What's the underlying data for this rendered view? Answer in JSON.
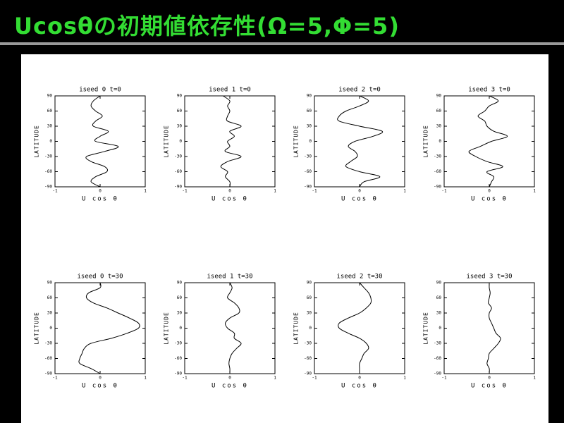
{
  "slide_title": "Ucosθの初期値依存性(Ω=5,Φ=5)",
  "chart_data": [
    {
      "type": "line",
      "title": "iseed 0   t=0",
      "xlabel": "U cos θ",
      "ylabel": "LATITUDE",
      "xlim": [
        -1,
        1
      ],
      "xticks": [
        -1,
        0,
        1
      ],
      "ylim": [
        -90,
        90
      ],
      "yticks": [
        -90,
        -60,
        -30,
        0,
        30,
        60,
        90
      ],
      "color": "#000000",
      "y": [
        90,
        80,
        70,
        60,
        50,
        40,
        30,
        20,
        10,
        0,
        -10,
        -20,
        -30,
        -40,
        -50,
        -60,
        -70,
        -80,
        -90
      ],
      "values": [
        0,
        -0.15,
        -0.2,
        -0.1,
        0.05,
        -0.1,
        -0.15,
        0.18,
        0.0,
        -0.1,
        0.4,
        0.1,
        -0.3,
        -0.2,
        0.1,
        0.15,
        -0.1,
        -0.2,
        0
      ]
    },
    {
      "type": "line",
      "title": "iseed 1   t=0",
      "xlabel": "U cos θ",
      "ylabel": "LATITUDE",
      "xlim": [
        -1,
        1
      ],
      "xticks": [
        -1,
        0,
        1
      ],
      "ylim": [
        -90,
        90
      ],
      "yticks": [
        -90,
        -60,
        -30,
        0,
        30,
        60,
        90
      ],
      "color": "#000000",
      "y": [
        90,
        80,
        70,
        60,
        50,
        40,
        30,
        20,
        10,
        0,
        -10,
        -20,
        -30,
        -40,
        -50,
        -60,
        -70,
        -80,
        -90
      ],
      "values": [
        -0.15,
        0.0,
        -0.05,
        0.0,
        -0.05,
        -0.05,
        0.25,
        0.0,
        0.1,
        -0.05,
        0.0,
        -0.1,
        0.25,
        -0.05,
        -0.2,
        -0.05,
        -0.1,
        0.0,
        0
      ]
    },
    {
      "type": "line",
      "title": "iseed 2   t=0",
      "xlabel": "U cos θ",
      "ylabel": "LATITUDE",
      "xlim": [
        -1,
        1
      ],
      "xticks": [
        -1,
        0,
        1
      ],
      "ylim": [
        -90,
        90
      ],
      "yticks": [
        -90,
        -60,
        -30,
        0,
        30,
        60,
        90
      ],
      "color": "#000000",
      "y": [
        90,
        80,
        70,
        60,
        50,
        40,
        30,
        20,
        10,
        0,
        -10,
        -20,
        -30,
        -40,
        -50,
        -60,
        -70,
        -80,
        -90
      ],
      "values": [
        0,
        0.2,
        0.0,
        -0.3,
        -0.45,
        -0.45,
        0.0,
        0.5,
        0.3,
        -0.1,
        -0.25,
        -0.1,
        -0.05,
        -0.2,
        -0.3,
        0.0,
        0.45,
        0.1,
        0
      ]
    },
    {
      "type": "line",
      "title": "iseed 3   t=0",
      "xlabel": "U cos θ",
      "ylabel": "LATITUDE",
      "xlim": [
        -1,
        1
      ],
      "xticks": [
        -1,
        0,
        1
      ],
      "ylim": [
        -90,
        90
      ],
      "yticks": [
        -90,
        -60,
        -30,
        0,
        30,
        60,
        90
      ],
      "color": "#000000",
      "y": [
        90,
        80,
        70,
        60,
        50,
        40,
        30,
        20,
        10,
        0,
        -10,
        -20,
        -30,
        -40,
        -50,
        -60,
        -70,
        -80,
        -90
      ],
      "values": [
        0,
        0.2,
        0.0,
        -0.1,
        -0.25,
        -0.1,
        -0.05,
        0.1,
        0.4,
        0.05,
        -0.2,
        -0.45,
        -0.3,
        -0.05,
        0.3,
        -0.05,
        0.1,
        0.05,
        0
      ]
    },
    {
      "type": "line",
      "title": "iseed 0   t=30",
      "xlabel": "U cos θ",
      "ylabel": "LATITUDE",
      "xlim": [
        -1,
        1
      ],
      "xticks": [
        -1,
        0,
        1
      ],
      "ylim": [
        -90,
        90
      ],
      "yticks": [
        -90,
        -60,
        -30,
        0,
        30,
        60,
        90
      ],
      "color": "#000000",
      "y": [
        90,
        80,
        70,
        60,
        50,
        40,
        30,
        20,
        10,
        0,
        -10,
        -20,
        -30,
        -40,
        -50,
        -60,
        -70,
        -80,
        -90
      ],
      "values": [
        0,
        0.0,
        -0.25,
        -0.3,
        -0.15,
        0.15,
        0.4,
        0.65,
        0.85,
        0.85,
        0.6,
        0.25,
        -0.2,
        -0.35,
        -0.4,
        -0.45,
        -0.45,
        -0.2,
        0
      ]
    },
    {
      "type": "line",
      "title": "iseed 1   t=30",
      "xlabel": "U cos θ",
      "ylabel": "LATITUDE",
      "xlim": [
        -1,
        1
      ],
      "xticks": [
        -1,
        0,
        1
      ],
      "ylim": [
        -90,
        90
      ],
      "yticks": [
        -90,
        -60,
        -30,
        0,
        30,
        60,
        90
      ],
      "color": "#000000",
      "y": [
        90,
        80,
        70,
        60,
        50,
        40,
        30,
        20,
        10,
        0,
        -10,
        -20,
        -30,
        -40,
        -50,
        -60,
        -70,
        -80,
        -90
      ],
      "values": [
        0,
        0.05,
        0.0,
        -0.05,
        0.1,
        0.2,
        0.2,
        0.0,
        -0.1,
        -0.05,
        0.1,
        0.1,
        0.25,
        0.15,
        0.05,
        0.0,
        -0.02,
        0.0,
        0
      ]
    },
    {
      "type": "line",
      "title": "iseed 2   t=30",
      "xlabel": "U cos θ",
      "ylabel": "LATITUDE",
      "xlim": [
        -1,
        1
      ],
      "xticks": [
        -1,
        0,
        1
      ],
      "ylim": [
        -90,
        90
      ],
      "yticks": [
        -90,
        -60,
        -30,
        0,
        30,
        60,
        90
      ],
      "color": "#000000",
      "y": [
        90,
        80,
        70,
        60,
        50,
        40,
        30,
        20,
        10,
        0,
        -10,
        -20,
        -30,
        -40,
        -50,
        -60,
        -70,
        -80,
        -90
      ],
      "values": [
        0,
        0.1,
        0.2,
        0.25,
        0.25,
        0.15,
        0.0,
        -0.25,
        -0.45,
        -0.45,
        -0.25,
        0.0,
        0.15,
        0.2,
        0.1,
        0.05,
        0.0,
        0.0,
        0
      ]
    },
    {
      "type": "line",
      "title": "iseed 3   t=30",
      "xlabel": "U cos θ",
      "ylabel": "LATITUDE",
      "xlim": [
        -1,
        1
      ],
      "xticks": [
        -1,
        0,
        1
      ],
      "ylim": [
        -90,
        90
      ],
      "yticks": [
        -90,
        -60,
        -30,
        0,
        30,
        60,
        90
      ],
      "color": "#000000",
      "y": [
        90,
        80,
        70,
        60,
        50,
        40,
        30,
        20,
        10,
        0,
        -10,
        -20,
        -30,
        -40,
        -50,
        -60,
        -70,
        -80,
        -90
      ],
      "values": [
        0,
        0.0,
        0.02,
        0.0,
        -0.02,
        0.05,
        0.0,
        0.0,
        0.05,
        0.1,
        0.15,
        0.25,
        0.2,
        0.1,
        0.0,
        -0.02,
        -0.05,
        0.0,
        0
      ]
    }
  ]
}
